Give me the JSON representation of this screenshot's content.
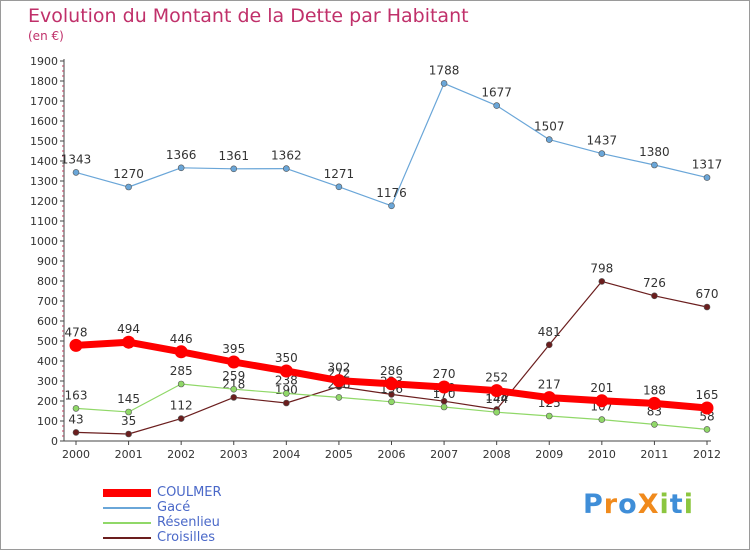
{
  "header": {
    "title": "Evolution du Montant de la Dette par Habitant",
    "unit": "(en €)"
  },
  "logo": {
    "text": "Proxiti",
    "letters": [
      {
        "ch": "P",
        "color": "#3f8ed8"
      },
      {
        "ch": "r",
        "color": "#f08a1c"
      },
      {
        "ch": "o",
        "color": "#3f8ed8"
      },
      {
        "ch": "X",
        "color": "#f08a1c"
      },
      {
        "ch": "i",
        "color": "#8cc63f"
      },
      {
        "ch": "t",
        "color": "#3f8ed8"
      },
      {
        "ch": "i",
        "color": "#8cc63f"
      }
    ]
  },
  "chart_data": {
    "type": "line",
    "x": [
      "2000",
      "2001",
      "2002",
      "2003",
      "2004",
      "2005",
      "2006",
      "2007",
      "2008",
      "2009",
      "2010",
      "2011",
      "2012"
    ],
    "ylim": [
      0,
      1900
    ],
    "yticks": [
      0,
      100,
      200,
      300,
      400,
      500,
      600,
      700,
      800,
      900,
      1000,
      1100,
      1200,
      1300,
      1400,
      1500,
      1600,
      1700,
      1800,
      1900
    ],
    "grid": false,
    "legend_position": "bottom-left",
    "series": [
      {
        "name": "Croisilles",
        "color": "#6b1e1e",
        "values": [
          43,
          35,
          112,
          218,
          190,
          272,
          233,
          199,
          158,
          481,
          798,
          726,
          670
        ]
      },
      {
        "name": "Résenlieu",
        "color": "#90d868",
        "values": [
          163,
          145,
          285,
          259,
          238,
          218,
          196,
          170,
          144,
          125,
          107,
          83,
          58
        ]
      },
      {
        "name": "Gacé",
        "color": "#6aa6d8",
        "values": [
          1343,
          1270,
          1366,
          1361,
          1362,
          1271,
          1176,
          1788,
          1677,
          1507,
          1437,
          1380,
          1317
        ]
      },
      {
        "name": "COULMER",
        "color": "#ff0000",
        "values": [
          478,
          494,
          446,
          395,
          350,
          302,
          286,
          270,
          252,
          217,
          201,
          188,
          165
        ]
      }
    ],
    "legend": [
      {
        "name": "COULMER",
        "color": "#ff0000"
      },
      {
        "name": "Gacé",
        "color": "#6aa6d8"
      },
      {
        "name": "Résenlieu",
        "color": "#90d868"
      },
      {
        "name": "Croisilles",
        "color": "#6b1e1e"
      }
    ]
  }
}
